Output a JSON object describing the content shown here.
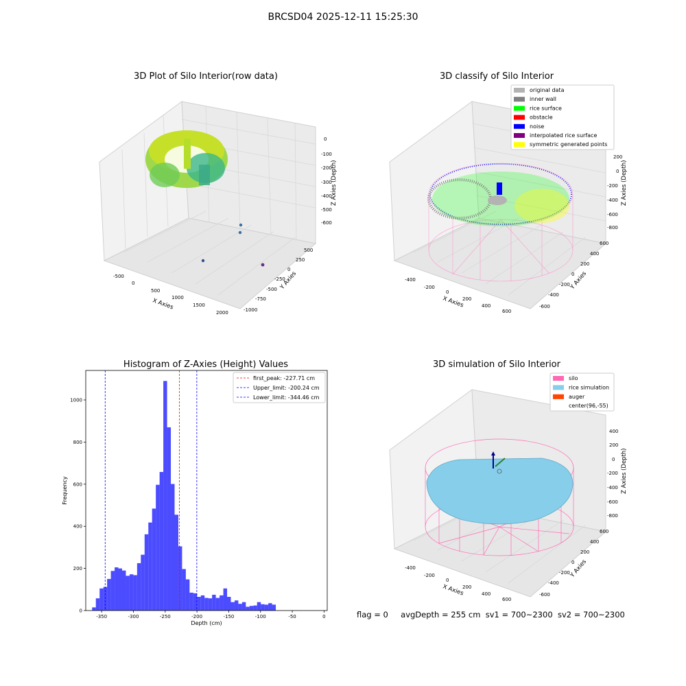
{
  "figure": {
    "title": "BRCSD04 2025-12-11 15:25:30"
  },
  "panels": {
    "raw": {
      "title": "3D Plot of Silo Interior(row data)",
      "xlabel": "X Axies",
      "ylabel": "Y Axies",
      "zlabel": "Z Axies (Depth)",
      "xticks": [
        "-500",
        "0",
        "500",
        "1000",
        "1500",
        "2000"
      ],
      "yticks": [
        "500",
        "250",
        "0",
        "-250",
        "-500",
        "-750",
        "-1000"
      ],
      "zticks": [
        "0",
        "-100",
        "-200",
        "-300",
        "-400",
        "-500",
        "-600"
      ]
    },
    "classify": {
      "title": "3D classify of Silo Interior",
      "xlabel": "X Axies",
      "ylabel": "Y Axies",
      "zlabel": "Z Axies (Depth)",
      "xticks": [
        "-400",
        "-200",
        "0",
        "200",
        "400",
        "600"
      ],
      "yticks": [
        "600",
        "400",
        "200",
        "0",
        "-200",
        "-400",
        "-600"
      ],
      "zticks": [
        "200",
        "0",
        "-200",
        "-400",
        "-600",
        "-800"
      ],
      "legend": [
        {
          "label": "original data",
          "color": "#b3b3b3"
        },
        {
          "label": "inner wall",
          "color": "#808080"
        },
        {
          "label": "rice surface",
          "color": "#00ff00"
        },
        {
          "label": "obstacle",
          "color": "#ff0000"
        },
        {
          "label": "noise",
          "color": "#0000ff"
        },
        {
          "label": "interpolated rice surface",
          "color": "#800080"
        },
        {
          "label": "symmetric generated points",
          "color": "#ffff00"
        }
      ]
    },
    "simulation": {
      "title": "3D simulation of Silo Interior",
      "xlabel": "X Axies",
      "ylabel": "Y Axies",
      "zlabel": "Z Axies (Depth)",
      "xticks": [
        "-400",
        "-200",
        "0",
        "200",
        "400",
        "600"
      ],
      "yticks": [
        "600",
        "400",
        "200",
        "0",
        "-200",
        "-400",
        "-600"
      ],
      "zticks": [
        "400",
        "200",
        "0",
        "-200",
        "-400",
        "-600",
        "-800"
      ],
      "legend": [
        {
          "label": "silo",
          "color": "#ff69b4"
        },
        {
          "label": "rice simulation",
          "color": "#87ceeb"
        },
        {
          "label": "auger",
          "color": "#ff4500"
        },
        {
          "label": "center(96,-55)",
          "color": ""
        }
      ]
    }
  },
  "chart_data": {
    "type": "bar",
    "title": "Histogram of Z-Axies (Height) Values",
    "xlabel": "Depth (cm)",
    "ylabel": "Frequency",
    "xlim": [
      -375,
      5
    ],
    "ylim": [
      0,
      1140
    ],
    "xticks": [
      -350,
      -300,
      -250,
      -200,
      -150,
      -100,
      -50,
      0
    ],
    "yticks": [
      0,
      200,
      400,
      600,
      800,
      1000
    ],
    "bin_start": -365,
    "bin_width": 5.9,
    "values": [
      15,
      58,
      105,
      112,
      150,
      188,
      205,
      200,
      190,
      165,
      172,
      168,
      225,
      265,
      362,
      418,
      484,
      597,
      658,
      1090,
      870,
      601,
      455,
      305,
      197,
      148,
      85,
      82,
      65,
      72,
      60,
      58,
      75,
      60,
      72,
      105,
      65,
      40,
      48,
      32,
      40,
      18,
      22,
      24,
      40,
      30,
      28,
      35,
      28
    ],
    "bar_color": "#0000ff",
    "lines": [
      {
        "label": "first_peak: -227.71 cm",
        "x": -227.71,
        "color": "#ff0000"
      },
      {
        "label": "Upper_limit: -200.24 cm",
        "x": -200.24,
        "color": "#0000ff"
      },
      {
        "label": "Lower_limit: -344.46 cm",
        "x": -344.46,
        "color": "#0000ff"
      }
    ],
    "grid": false,
    "legend_position": "top-right"
  },
  "status": {
    "flag": "flag = 0",
    "avg_depth": "avgDepth = 255 cm",
    "sv1": "sv1 = 700~2300",
    "sv2": "sv2 = 700~2300"
  }
}
